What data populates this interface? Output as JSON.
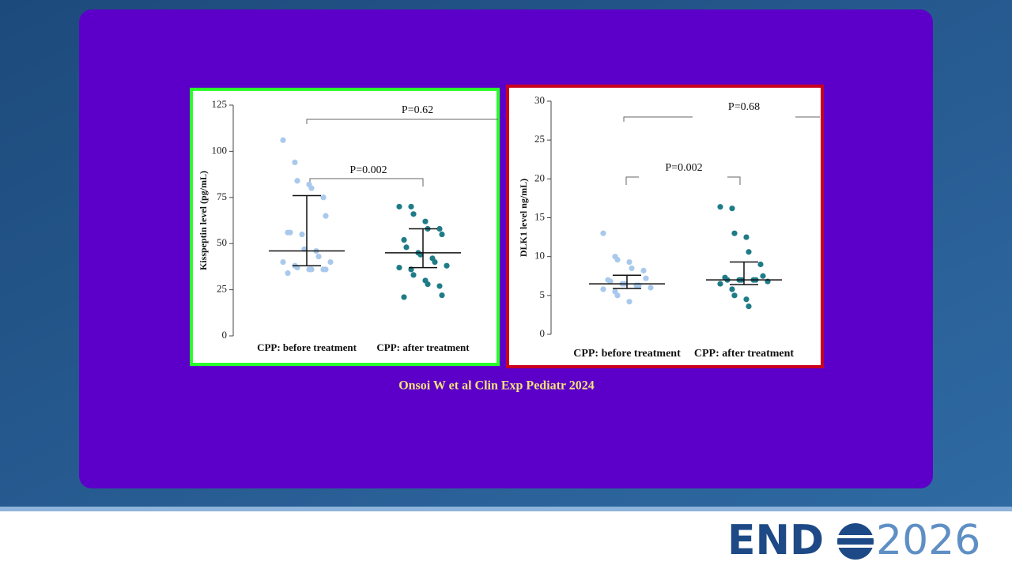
{
  "chart_data": [
    {
      "type": "strip",
      "ylabel": "Kisspeptin level (pg/mL)",
      "categories": [
        "CPP: before treatment",
        "CPP: after treatment"
      ],
      "groups": [
        {
          "color": "#a9c9ec",
          "median": 46,
          "q1": 38,
          "q3": 76,
          "values": [
            106,
            94,
            84,
            82,
            80,
            75,
            65,
            56,
            56,
            55,
            47,
            46,
            43,
            40,
            40,
            38,
            37,
            36,
            36,
            36,
            36,
            34
          ]
        },
        {
          "color": "#1f7c87",
          "median": 45,
          "q1": 37,
          "q3": 58,
          "values": [
            70,
            70,
            66,
            62,
            58,
            58,
            55,
            52,
            48,
            45,
            44,
            42,
            40,
            38,
            37,
            36,
            33,
            30,
            28,
            27,
            22,
            21
          ]
        }
      ],
      "ylim": [
        0,
        125
      ],
      "yticks": [
        0,
        25,
        50,
        75,
        100,
        125
      ],
      "annotations": [
        "P=0.62",
        "P=0.002"
      ]
    },
    {
      "type": "strip",
      "ylabel": "DLK1 level  ng/mL)",
      "categories": [
        "CPP: before treatment",
        "CPP: after treatment"
      ],
      "groups": [
        {
          "color": "#a9c9ec",
          "median": 6.5,
          "q1": 5.9,
          "q3": 7.6,
          "values": [
            13,
            10,
            9.6,
            9.3,
            8.5,
            8.2,
            7.2,
            7.0,
            6.8,
            6.5,
            6.5,
            6.3,
            6.3,
            6.0,
            5.8,
            5.5,
            5.0,
            4.2
          ]
        },
        {
          "color": "#1f7c87",
          "median": 7.0,
          "q1": 6.4,
          "q3": 9.3,
          "values": [
            16.4,
            16.2,
            13,
            12.5,
            10.6,
            9.0,
            7.5,
            7.3,
            7.0,
            7.0,
            7.0,
            7.0,
            7.0,
            6.8,
            6.5,
            5.8,
            5.0,
            4.5,
            3.6
          ]
        }
      ],
      "ylim": [
        0,
        30
      ],
      "yticks": [
        0,
        5,
        10,
        15,
        20,
        25,
        30
      ],
      "annotations": [
        "P=0.68",
        "P=0.002"
      ]
    }
  ],
  "citation": "Onsoi W et al Clin Exp Pediatr 2024",
  "logo": {
    "left": "END",
    "right": "2026"
  }
}
